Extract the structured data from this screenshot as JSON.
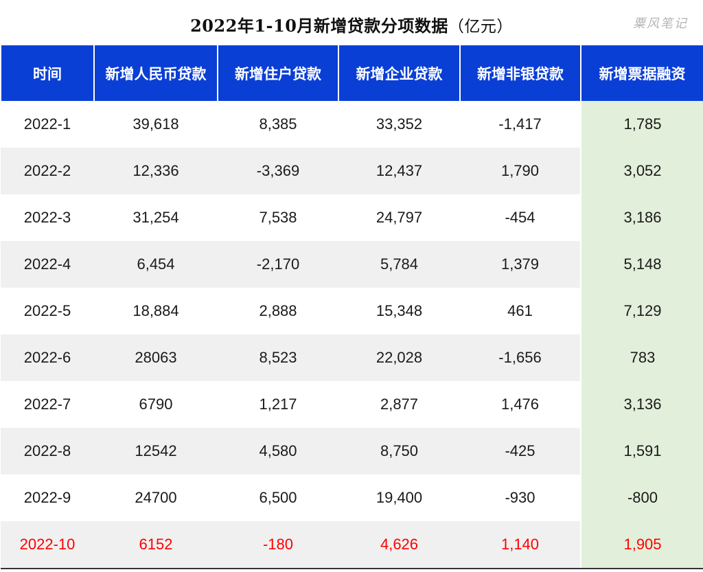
{
  "title": "2022年1-10月新增贷款分项数据",
  "unit": "（亿元）",
  "watermark": "粟风笔记",
  "colors": {
    "header_bg": "#0a3fd6",
    "highlight_col_bg": "#e2efda",
    "alt_row_bg": "#f0f0f0",
    "latest_row_text": "#ff0000"
  },
  "chart_data": {
    "type": "table",
    "columns": [
      "时间",
      "新增人民币贷款",
      "新增住户贷款",
      "新增企业贷款",
      "新增非银贷款",
      "新增票据融资"
    ],
    "rows": [
      [
        "2022-1",
        "39,618",
        "8,385",
        "33,352",
        "-1,417",
        "1,785"
      ],
      [
        "2022-2",
        "12,336",
        "-3,369",
        "12,437",
        "1,790",
        "3,052"
      ],
      [
        "2022-3",
        "31,254",
        "7,538",
        "24,797",
        "-454",
        "3,186"
      ],
      [
        "2022-4",
        "6,454",
        "-2,170",
        "5,784",
        "1,379",
        "5,148"
      ],
      [
        "2022-5",
        "18,884",
        "2,888",
        "15,348",
        "461",
        "7,129"
      ],
      [
        "2022-6",
        "28063",
        "8,523",
        "22,028",
        "-1,656",
        "783"
      ],
      [
        "2022-7",
        "6790",
        "1,217",
        "2,877",
        "1,476",
        "3,136"
      ],
      [
        "2022-8",
        "12542",
        "4,580",
        "8,750",
        "-425",
        "1,591"
      ],
      [
        "2022-9",
        "24700",
        "6,500",
        "19,400",
        "-930",
        "-800"
      ],
      [
        "2022-10",
        "6152",
        "-180",
        "4,626",
        "1,140",
        "1,905"
      ]
    ]
  }
}
